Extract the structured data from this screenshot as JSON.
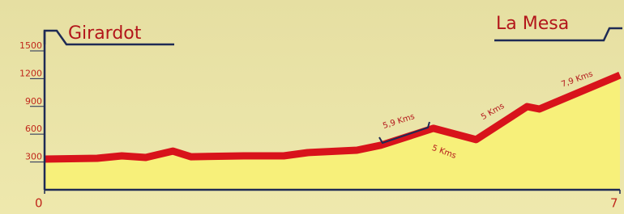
{
  "chart_data": {
    "type": "area",
    "start_label": "Girardot",
    "end_label": "La Mesa",
    "annotations": [
      "5,9 Kms",
      "5 Kms",
      "5 Kms",
      "7,9 Kms"
    ],
    "x": [
      0,
      0.64,
      0.94,
      1.23,
      1.56,
      1.78,
      2.42,
      2.91,
      3.2,
      3.8,
      4.09,
      4.73,
      5.25,
      5.87,
      6.02,
      7
    ],
    "values": [
      331,
      340,
      366,
      349,
      418,
      357,
      366,
      366,
      401,
      427,
      480,
      663,
      541,
      898,
      872,
      1238
    ],
    "line_color": "#d8131b",
    "fill_color": "#f7f07a",
    "xlim": [
      0,
      7
    ],
    "xticks": [
      0,
      7
    ],
    "ylim": [
      0,
      1700
    ],
    "yticks": [
      300,
      600,
      900,
      1200,
      1500
    ]
  }
}
